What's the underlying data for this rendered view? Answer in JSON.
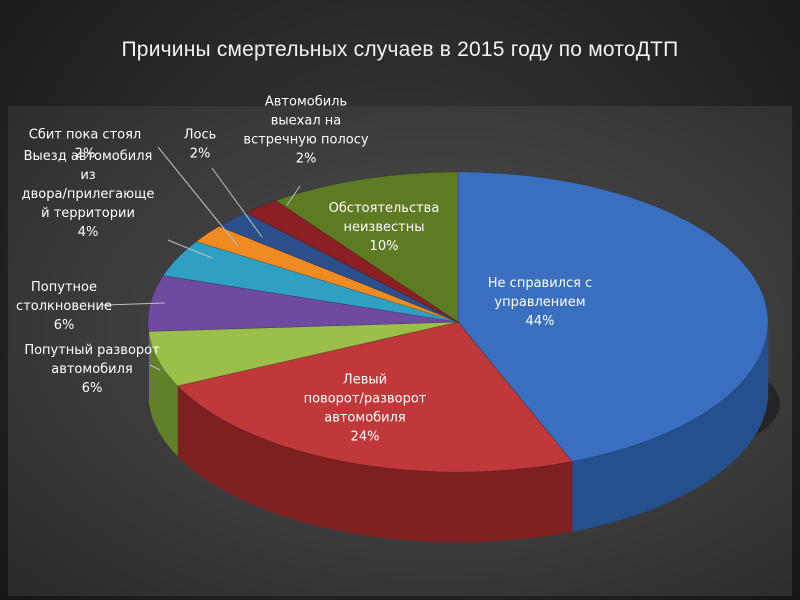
{
  "slide": {
    "title": "Причины смертельных случаев в 2015 году по мотоДТП"
  },
  "chart_data": {
    "type": "pie",
    "title": "Причины смертельных случаев в 2015 году по мотоДТП",
    "style": "3d",
    "slices": [
      {
        "lines": [
          "Не справился с",
          "управлением"
        ],
        "value": 44,
        "pct": "44%",
        "color": "#3a6fc0",
        "side": "#25508f"
      },
      {
        "lines": [
          "Левый",
          "поворот/разворот",
          "автомобиля"
        ],
        "value": 24,
        "pct": "24%",
        "color": "#c0393a",
        "side": "#7e1f20"
      },
      {
        "lines": [
          "Попутный разворот",
          "автомобиля"
        ],
        "value": 6,
        "pct": "6%",
        "color": "#9bbf4a",
        "side": "#62802a"
      },
      {
        "lines": [
          "Попутное",
          "столкновение"
        ],
        "value": 6,
        "pct": "6%",
        "color": "#6e4aa0",
        "side": "#462d6b"
      },
      {
        "lines": [
          "Выезд автомобиля",
          "из",
          "двора/прилегающе",
          "й территории"
        ],
        "value": 4,
        "pct": "4%",
        "color": "#2fa0c4",
        "side": "#1c6a84"
      },
      {
        "lines": [
          "Сбит пока стоял"
        ],
        "value": 2,
        "pct": "2%",
        "color": "#f08a22",
        "side": "#a8580f"
      },
      {
        "lines": [
          "Лось"
        ],
        "value": 2,
        "pct": "2%",
        "color": "#2b4f8a",
        "side": "#1a325a"
      },
      {
        "lines": [
          "Автомобиль",
          "выехал на",
          "встречную полосу"
        ],
        "value": 2,
        "pct": "2%",
        "color": "#8b1f24",
        "side": "#561215"
      },
      {
        "lines": [
          "Обстоятельства",
          "неизвестны"
        ],
        "value": 10,
        "pct": "10%",
        "color": "#5e7a23",
        "side": "#3b4d14"
      }
    ]
  }
}
